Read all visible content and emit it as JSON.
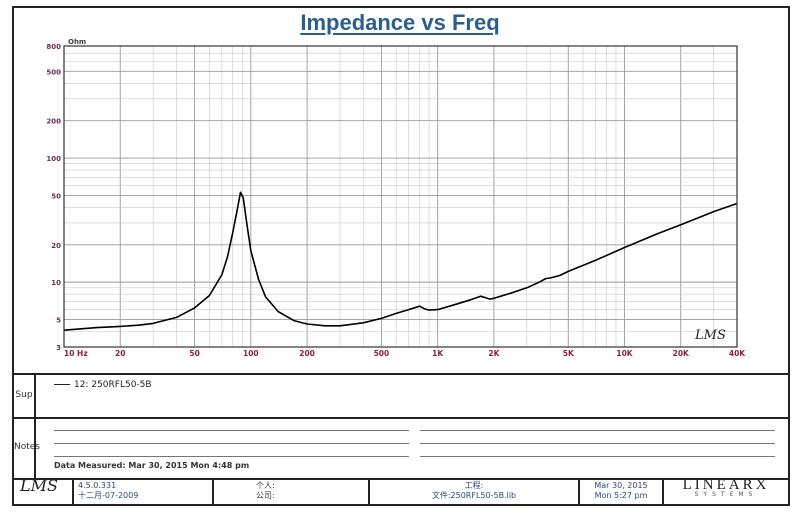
{
  "chart_data": {
    "type": "line",
    "title": "Impedance vs Freq",
    "ylabel_unit": "Ohm",
    "x_scale": "log",
    "y_scale": "log",
    "xlim": [
      10,
      40000
    ],
    "ylim": [
      3,
      800
    ],
    "x_ticks": [
      {
        "value": 10,
        "label": "10 Hz"
      },
      {
        "value": 20,
        "label": "20"
      },
      {
        "value": 50,
        "label": "50"
      },
      {
        "value": 100,
        "label": "100"
      },
      {
        "value": 200,
        "label": "200"
      },
      {
        "value": 500,
        "label": "500"
      },
      {
        "value": 1000,
        "label": "1K"
      },
      {
        "value": 2000,
        "label": "2K"
      },
      {
        "value": 5000,
        "label": "5K"
      },
      {
        "value": 10000,
        "label": "10K"
      },
      {
        "value": 20000,
        "label": "20K"
      },
      {
        "value": 40000,
        "label": "40K"
      }
    ],
    "y_ticks": [
      {
        "value": 800,
        "label": "800"
      },
      {
        "value": 500,
        "label": "500"
      },
      {
        "value": 200,
        "label": "200"
      },
      {
        "value": 100,
        "label": "100"
      },
      {
        "value": 50,
        "label": "50"
      },
      {
        "value": 20,
        "label": "20"
      },
      {
        "value": 10,
        "label": "10"
      },
      {
        "value": 5,
        "label": "5"
      },
      {
        "value": 3,
        "label": "3"
      }
    ],
    "grid": true,
    "series": [
      {
        "name": "12: 250RFL50-5B",
        "color": "#000000",
        "x": [
          10,
          15,
          20,
          25,
          30,
          40,
          50,
          60,
          70,
          75,
          80,
          85,
          88,
          91,
          95,
          100,
          110,
          120,
          140,
          170,
          200,
          250,
          300,
          400,
          500,
          600,
          700,
          800,
          850,
          900,
          1000,
          1200,
          1500,
          1700,
          1800,
          1900,
          2000,
          2500,
          3000,
          3500,
          3800,
          4000,
          4500,
          5000,
          7000,
          10000,
          15000,
          20000,
          30000,
          40000
        ],
        "y": [
          4.1,
          4.3,
          4.4,
          4.5,
          4.65,
          5.2,
          6.2,
          7.8,
          11.5,
          16,
          25,
          40,
          53,
          48,
          30,
          18,
          10.5,
          7.6,
          5.8,
          4.9,
          4.6,
          4.45,
          4.45,
          4.7,
          5.1,
          5.6,
          6.0,
          6.4,
          6.1,
          5.95,
          6.0,
          6.5,
          7.2,
          7.7,
          7.5,
          7.3,
          7.4,
          8.2,
          9.0,
          10.0,
          10.7,
          10.8,
          11.3,
          12.2,
          15,
          19,
          24.5,
          29,
          37,
          43
        ]
      }
    ]
  },
  "ui": {
    "legend_tab": "Sup",
    "notes_tab": "Notes",
    "legend_entry": "12: 250RFL50-5B",
    "measured": "Data Measured: Mar 30, 2015  Mon  4:48 pm",
    "footer": {
      "logo": "LMS",
      "version_1": "4.5.0.331",
      "version_2": "十二月-07-2009",
      "user_1": "个人:",
      "user_2": "公司:",
      "file_1": "工程:",
      "file_2": "文件:250RFL50-5B.lib",
      "date_1": "Mar 30, 2015",
      "date_2": "Mon  5:27 pm",
      "brand": "LINEARX",
      "brand_sub": "SYSTEMS"
    },
    "watermark": "LMS"
  }
}
